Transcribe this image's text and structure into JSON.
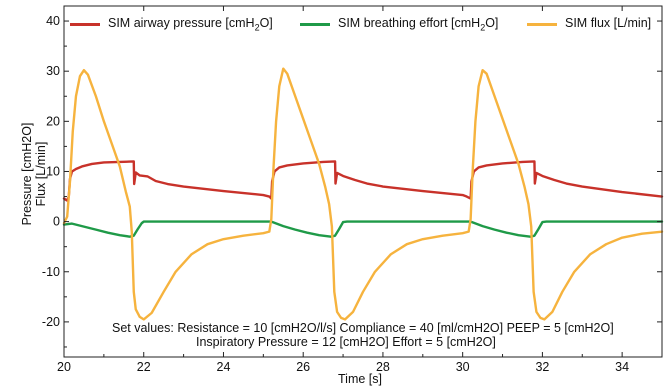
{
  "chart_data": {
    "type": "line",
    "xlabel": "Time [s]",
    "ylabel_lines": [
      "Pressure [cmH2O]",
      "Flux [L/min]"
    ],
    "xlim": [
      20,
      35
    ],
    "ylim": [
      -27,
      43
    ],
    "xticks": [
      20,
      22,
      24,
      26,
      28,
      30,
      32,
      34
    ],
    "yticks": [
      -20,
      -10,
      0,
      10,
      20,
      30,
      40
    ],
    "grid": false,
    "legend_position": "top",
    "legend_labels": {
      "pressure": {
        "prefix": "SIM airway pressure [cmH",
        "sub": "2",
        "suffix": "O]"
      },
      "effort": {
        "prefix": "SIM breathing effort [cmH",
        "sub": "2",
        "suffix": "O]"
      },
      "flux": {
        "prefix": "SIM flux [L/min]",
        "sub": "",
        "suffix": ""
      }
    },
    "annotation_line1": "Set values: Resistance = 10 [cmH2O/l/s]     Compliance = 40 [ml/cmH2O]     PEEP = 5 [cmH2O]",
    "annotation_line2": "Inspiratory Pressure = 12 [cmH2O]        Effort = 5 [cmH2O]",
    "series": [
      {
        "key": "pressure",
        "color": "#c8322a",
        "points": [
          [
            20.0,
            4.6
          ],
          [
            20.08,
            4.2
          ],
          [
            20.12,
            5.0
          ],
          [
            20.15,
            8.5
          ],
          [
            20.2,
            10.0
          ],
          [
            20.3,
            10.5
          ],
          [
            20.45,
            11.0
          ],
          [
            20.7,
            11.5
          ],
          [
            21.0,
            11.8
          ],
          [
            21.4,
            11.9
          ],
          [
            21.75,
            12.0
          ],
          [
            21.76,
            7.5
          ],
          [
            21.8,
            9.8
          ],
          [
            21.9,
            9.2
          ],
          [
            22.1,
            9.0
          ],
          [
            22.3,
            8.1
          ],
          [
            22.6,
            7.5
          ],
          [
            23.0,
            7.0
          ],
          [
            24.0,
            6.1
          ],
          [
            25.0,
            5.3
          ],
          [
            25.15,
            5.0
          ],
          [
            25.2,
            4.6
          ],
          [
            25.22,
            8.0
          ],
          [
            25.28,
            10.0
          ],
          [
            25.4,
            10.8
          ],
          [
            25.6,
            11.2
          ],
          [
            26.0,
            11.6
          ],
          [
            26.5,
            11.9
          ],
          [
            26.8,
            12.0
          ],
          [
            26.81,
            7.6
          ],
          [
            26.85,
            9.7
          ],
          [
            27.0,
            9.1
          ],
          [
            27.3,
            8.3
          ],
          [
            27.6,
            7.6
          ],
          [
            28.0,
            7.0
          ],
          [
            29.0,
            6.1
          ],
          [
            30.0,
            5.3
          ],
          [
            30.1,
            5.0
          ],
          [
            30.2,
            4.6
          ],
          [
            30.22,
            8.0
          ],
          [
            30.28,
            10.0
          ],
          [
            30.4,
            10.8
          ],
          [
            30.6,
            11.2
          ],
          [
            31.0,
            11.6
          ],
          [
            31.5,
            11.9
          ],
          [
            31.8,
            12.0
          ],
          [
            31.81,
            7.6
          ],
          [
            31.85,
            9.7
          ],
          [
            32.0,
            9.1
          ],
          [
            32.3,
            8.3
          ],
          [
            32.6,
            7.6
          ],
          [
            33.0,
            7.0
          ],
          [
            34.0,
            5.9
          ],
          [
            35.0,
            5.0
          ]
        ]
      },
      {
        "key": "effort",
        "color": "#1f9a48",
        "points": [
          [
            20.0,
            -0.6
          ],
          [
            20.2,
            -0.4
          ],
          [
            20.5,
            -1.0
          ],
          [
            20.8,
            -1.6
          ],
          [
            21.1,
            -2.2
          ],
          [
            21.4,
            -2.7
          ],
          [
            21.65,
            -3.0
          ],
          [
            21.75,
            -2.8
          ],
          [
            21.85,
            -1.5
          ],
          [
            21.95,
            -0.3
          ],
          [
            22.0,
            0.0
          ],
          [
            25.2,
            0.0
          ],
          [
            25.5,
            -0.9
          ],
          [
            25.8,
            -1.6
          ],
          [
            26.1,
            -2.2
          ],
          [
            26.4,
            -2.7
          ],
          [
            26.7,
            -3.0
          ],
          [
            26.8,
            -2.8
          ],
          [
            26.9,
            -1.5
          ],
          [
            27.0,
            -0.1
          ],
          [
            27.1,
            0.0
          ],
          [
            30.2,
            0.0
          ],
          [
            30.5,
            -0.9
          ],
          [
            30.8,
            -1.6
          ],
          [
            31.1,
            -2.2
          ],
          [
            31.4,
            -2.7
          ],
          [
            31.7,
            -3.0
          ],
          [
            31.8,
            -2.8
          ],
          [
            31.9,
            -1.5
          ],
          [
            32.0,
            -0.1
          ],
          [
            32.1,
            0.0
          ],
          [
            35.0,
            0.0
          ]
        ]
      },
      {
        "key": "flux",
        "color": "#f6b33e",
        "points": [
          [
            20.0,
            -0.3
          ],
          [
            20.08,
            1.0
          ],
          [
            20.15,
            8.0
          ],
          [
            20.22,
            18.0
          ],
          [
            20.3,
            25.0
          ],
          [
            20.4,
            29.0
          ],
          [
            20.5,
            30.2
          ],
          [
            20.6,
            29.3
          ],
          [
            20.8,
            25.0
          ],
          [
            21.0,
            20.0
          ],
          [
            21.2,
            15.5
          ],
          [
            21.4,
            11.0
          ],
          [
            21.55,
            6.0
          ],
          [
            21.65,
            3.0
          ],
          [
            21.7,
            -2.0
          ],
          [
            21.75,
            -14.0
          ],
          [
            21.8,
            -17.5
          ],
          [
            21.9,
            -19.0
          ],
          [
            22.0,
            -19.5
          ],
          [
            22.2,
            -18.2
          ],
          [
            22.5,
            -14.0
          ],
          [
            22.8,
            -10.0
          ],
          [
            23.2,
            -6.5
          ],
          [
            23.6,
            -4.5
          ],
          [
            24.0,
            -3.5
          ],
          [
            24.5,
            -2.8
          ],
          [
            25.0,
            -2.3
          ],
          [
            25.15,
            -2.0
          ],
          [
            25.2,
            0.5
          ],
          [
            25.25,
            10.0
          ],
          [
            25.32,
            20.0
          ],
          [
            25.4,
            27.0
          ],
          [
            25.5,
            30.5
          ],
          [
            25.6,
            29.5
          ],
          [
            25.8,
            25.0
          ],
          [
            26.0,
            20.5
          ],
          [
            26.2,
            16.0
          ],
          [
            26.4,
            11.5
          ],
          [
            26.55,
            7.0
          ],
          [
            26.65,
            3.5
          ],
          [
            26.72,
            -1.0
          ],
          [
            26.78,
            -14.0
          ],
          [
            26.85,
            -18.0
          ],
          [
            26.95,
            -19.2
          ],
          [
            27.05,
            -19.5
          ],
          [
            27.25,
            -18.0
          ],
          [
            27.5,
            -14.0
          ],
          [
            27.8,
            -10.0
          ],
          [
            28.2,
            -6.5
          ],
          [
            28.6,
            -4.5
          ],
          [
            29.0,
            -3.5
          ],
          [
            29.5,
            -2.8
          ],
          [
            30.0,
            -2.3
          ],
          [
            30.15,
            -2.0
          ],
          [
            30.2,
            0.5
          ],
          [
            30.25,
            10.0
          ],
          [
            30.32,
            20.0
          ],
          [
            30.4,
            27.0
          ],
          [
            30.5,
            30.2
          ],
          [
            30.6,
            29.5
          ],
          [
            30.8,
            25.0
          ],
          [
            31.0,
            20.5
          ],
          [
            31.2,
            16.0
          ],
          [
            31.4,
            11.5
          ],
          [
            31.55,
            7.0
          ],
          [
            31.65,
            3.5
          ],
          [
            31.72,
            -1.0
          ],
          [
            31.78,
            -14.0
          ],
          [
            31.85,
            -18.0
          ],
          [
            31.95,
            -19.2
          ],
          [
            32.05,
            -19.5
          ],
          [
            32.25,
            -18.0
          ],
          [
            32.5,
            -14.0
          ],
          [
            32.8,
            -10.0
          ],
          [
            33.2,
            -6.5
          ],
          [
            33.6,
            -4.5
          ],
          [
            34.0,
            -3.2
          ],
          [
            34.5,
            -2.4
          ],
          [
            35.0,
            -2.0
          ]
        ]
      }
    ]
  }
}
